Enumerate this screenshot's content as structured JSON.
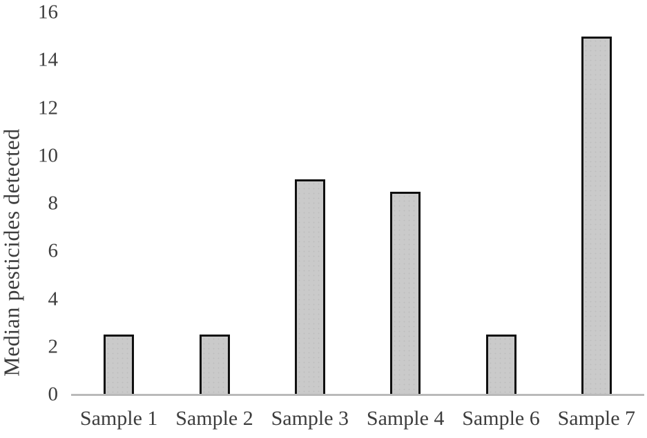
{
  "figure": {
    "background": "#ffffff",
    "text_color": "#3d3d3d",
    "bar_fill": "#cacaca",
    "bar_border": "#0f0f0f",
    "axis_line_color": "#b9b9b9"
  },
  "chart_data": {
    "type": "bar",
    "title": "",
    "xlabel": "",
    "ylabel": "Median pesticides detected",
    "categories": [
      "Sample 1",
      "Sample 2",
      "Sample 3",
      "Sample 4",
      "Sample 6",
      "Sample 7"
    ],
    "values": [
      2.5,
      2.5,
      9,
      8.5,
      2.5,
      15
    ],
    "ylim": [
      0,
      16
    ],
    "yticks": [
      0,
      2,
      4,
      6,
      8,
      10,
      12,
      14,
      16
    ],
    "grid": false,
    "legend": false,
    "bar_outline": true
  }
}
